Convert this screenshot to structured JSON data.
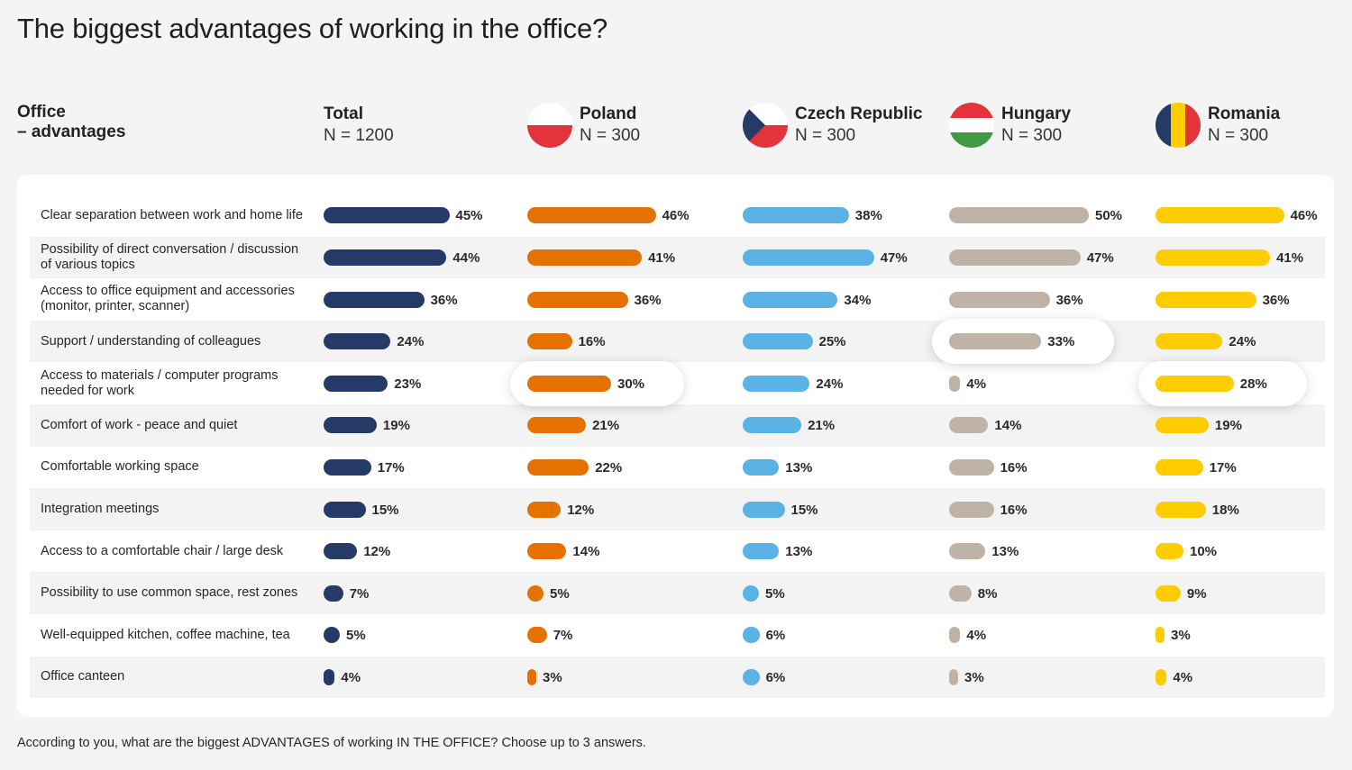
{
  "title": "The biggest advantages of working in the office?",
  "row_header": {
    "line1": "Office",
    "line2": "– advantages"
  },
  "footer": "According to you, what are the biggest ADVANTAGES of working IN THE OFFICE? Choose up to 3 answers.",
  "chart_data": {
    "type": "bar",
    "orientation": "horizontal",
    "title": "The biggest advantages of working in the office?",
    "unit": "%",
    "categories": [
      "Clear separation between work and home life",
      "Possibility of direct conversation / discussion of various topics",
      "Access to office equipment and accessories (monitor, printer, scanner)",
      "Support / understanding of colleagues",
      "Access to materials / computer programs needed for work",
      "Comfort of work - peace and quiet",
      "Comfortable working space",
      "Integration meetings",
      "Access to a comfortable chair / large desk",
      "Possibility to use common space, rest zones",
      "Well-equipped kitchen, coffee machine, tea",
      "Office canteen"
    ],
    "series": [
      {
        "name": "Total",
        "sample": "N = 1200",
        "color": "#253a66",
        "flag": "none",
        "values": [
          45,
          44,
          36,
          24,
          23,
          19,
          17,
          15,
          12,
          7,
          5,
          4
        ],
        "highlight": null
      },
      {
        "name": "Poland",
        "sample": "N = 300",
        "color": "#e57200",
        "flag": "poland",
        "values": [
          46,
          41,
          36,
          16,
          30,
          21,
          22,
          12,
          14,
          5,
          7,
          3
        ],
        "highlight": 4
      },
      {
        "name": "Czech Republic",
        "sample": "N = 300",
        "color": "#5ab2e5",
        "flag": "czech",
        "values": [
          38,
          47,
          34,
          25,
          24,
          21,
          13,
          15,
          13,
          5,
          6,
          6
        ],
        "highlight": null
      },
      {
        "name": "Hungary",
        "sample": "N = 300",
        "color": "#bfb3a8",
        "flag": "hungary",
        "values": [
          50,
          47,
          36,
          33,
          4,
          14,
          16,
          16,
          13,
          8,
          4,
          3
        ],
        "highlight": 3
      },
      {
        "name": "Romania",
        "sample": "N = 300",
        "color": "#ffcc00",
        "flag": "romania",
        "values": [
          46,
          41,
          36,
          24,
          28,
          19,
          17,
          18,
          10,
          9,
          3,
          4
        ],
        "highlight": 4
      }
    ]
  }
}
